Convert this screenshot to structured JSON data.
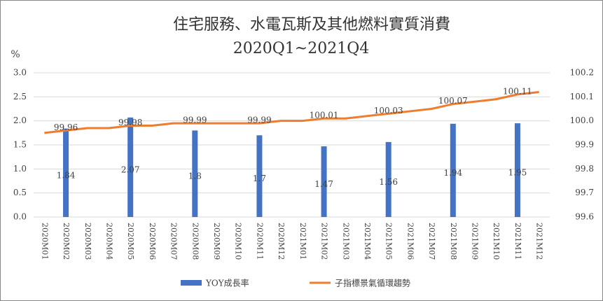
{
  "chart_data": {
    "type": "bar-line",
    "title": "住宅服務、水電瓦斯及其他燃料實質消費",
    "subtitle": "2020Q1~2021Q4",
    "y_label": "%",
    "categories": [
      "2020M01",
      "2020M02",
      "2020M03",
      "2020M04",
      "2020M05",
      "2020M06",
      "2020M07",
      "2020M08",
      "2020M09",
      "2020M10",
      "2020M11",
      "2020M12",
      "2021M01",
      "2021M02",
      "2021M03",
      "2021M04",
      "2021M05",
      "2021M06",
      "2021M07",
      "2021M08",
      "2021M09",
      "2021M10",
      "2021M11",
      "2021M12"
    ],
    "series": [
      {
        "name": "YOY成長率",
        "type": "bar",
        "color": "#4472c4",
        "values": [
          null,
          1.84,
          null,
          null,
          2.07,
          null,
          null,
          1.8,
          null,
          null,
          1.7,
          null,
          null,
          1.47,
          null,
          null,
          1.56,
          null,
          null,
          1.94,
          null,
          null,
          1.95,
          null
        ]
      },
      {
        "name": "子指標景氣循環趨勢",
        "type": "line",
        "axis": "y2",
        "color": "#ed7d31",
        "values": [
          99.95,
          99.96,
          99.97,
          99.97,
          99.98,
          99.98,
          99.99,
          99.99,
          99.99,
          99.99,
          99.99,
          100.0,
          100.0,
          100.01,
          100.01,
          100.02,
          100.03,
          100.04,
          100.05,
          100.07,
          100.08,
          100.09,
          100.11,
          100.12
        ],
        "value_labels": [
          null,
          "99.96",
          null,
          null,
          "99.98",
          null,
          null,
          "99.99",
          null,
          null,
          "99.99",
          null,
          null,
          "100.01",
          null,
          null,
          "100.03",
          null,
          null,
          "100.07",
          null,
          null,
          "100.11",
          null
        ]
      }
    ],
    "ylim": [
      0,
      3
    ],
    "yticks": [
      {
        "value": 0,
        "label": "0.0"
      },
      0.5,
      {
        "value": 1,
        "label": "1.0"
      },
      1.5,
      {
        "value": 2,
        "label": "2.0"
      },
      2.5,
      {
        "value": 3,
        "label": "3.0"
      }
    ],
    "y2lim": [
      99.6,
      100.2
    ],
    "y2ticks": [
      99.6,
      99.7,
      99.8,
      99.9,
      {
        "value": 100,
        "label": "100.0"
      },
      100.1,
      100.2
    ],
    "grid": true
  }
}
